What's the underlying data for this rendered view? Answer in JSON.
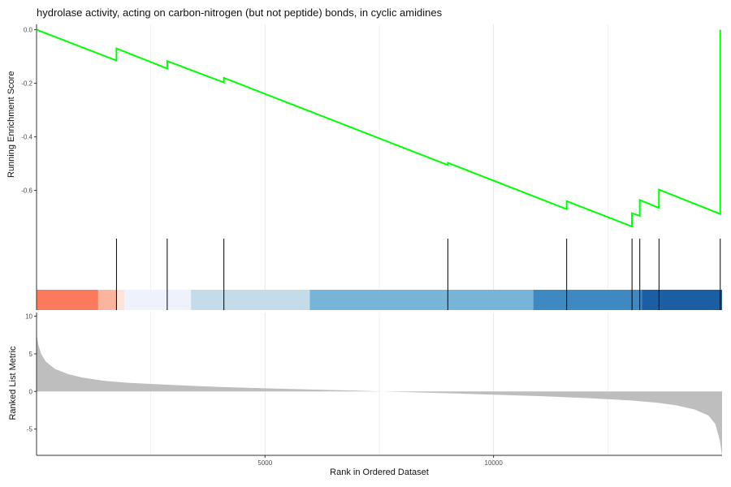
{
  "chart_data": {
    "type": "line",
    "title": "hydrolase activity, acting on carbon-nitrogen (but not peptide) bonds, in cyclic amidines",
    "xlabel": "Rank in Ordered Dataset",
    "xlim": [
      1,
      15000
    ],
    "x_ticks": [
      5000,
      10000
    ],
    "grid": true,
    "panels": {
      "enrichment": {
        "ylabel": "Running Enrichment Score",
        "ylim": [
          -0.78,
          0.02
        ],
        "y_ticks": [
          0.0,
          -0.2,
          -0.4,
          -0.6
        ],
        "line_color": "#00ff00",
        "series": [
          {
            "x": 1,
            "y": 0.0
          },
          {
            "x": 1750,
            "y": -0.115
          },
          {
            "x": 1750,
            "y": -0.07
          },
          {
            "x": 2860,
            "y": -0.145
          },
          {
            "x": 2860,
            "y": -0.117
          },
          {
            "x": 4100,
            "y": -0.197
          },
          {
            "x": 4100,
            "y": -0.18
          },
          {
            "x": 9000,
            "y": -0.505
          },
          {
            "x": 9000,
            "y": -0.497
          },
          {
            "x": 11600,
            "y": -0.67
          },
          {
            "x": 11600,
            "y": -0.64
          },
          {
            "x": 13030,
            "y": -0.735
          },
          {
            "x": 13030,
            "y": -0.685
          },
          {
            "x": 13200,
            "y": -0.695
          },
          {
            "x": 13200,
            "y": -0.636
          },
          {
            "x": 13620,
            "y": -0.665
          },
          {
            "x": 13620,
            "y": -0.597
          },
          {
            "x": 14960,
            "y": -0.688
          },
          {
            "x": 14960,
            "y": 0.0
          }
        ]
      },
      "hits": {
        "positions": [
          1750,
          2860,
          4100,
          9000,
          11600,
          13030,
          13200,
          13620,
          14960
        ],
        "heatmap_bands": [
          {
            "from": 1,
            "to": 1350,
            "color": "#fb7a5e"
          },
          {
            "from": 1350,
            "to": 1760,
            "color": "#fcb49c"
          },
          {
            "from": 1760,
            "to": 1920,
            "color": "#fde4d8"
          },
          {
            "from": 1920,
            "to": 3380,
            "color": "#eef2fb"
          },
          {
            "from": 3380,
            "to": 5980,
            "color": "#c4dbea"
          },
          {
            "from": 5980,
            "to": 10870,
            "color": "#78b4d8"
          },
          {
            "from": 10870,
            "to": 13250,
            "color": "#3f89c3"
          },
          {
            "from": 13250,
            "to": 15000,
            "color": "#1c5ea3"
          }
        ]
      },
      "ranked": {
        "ylabel": "Ranked List Metric",
        "ylim": [
          -8.5,
          10.5
        ],
        "y_ticks": [
          10,
          5,
          0,
          -5
        ],
        "fill_color": "#bebebe",
        "series": [
          {
            "x": 1,
            "y": 7.6
          },
          {
            "x": 40,
            "y": 6.2
          },
          {
            "x": 100,
            "y": 5.0
          },
          {
            "x": 200,
            "y": 4.0
          },
          {
            "x": 400,
            "y": 3.0
          },
          {
            "x": 700,
            "y": 2.3
          },
          {
            "x": 1000,
            "y": 1.85
          },
          {
            "x": 1500,
            "y": 1.4
          },
          {
            "x": 2000,
            "y": 1.15
          },
          {
            "x": 3000,
            "y": 0.85
          },
          {
            "x": 4000,
            "y": 0.6
          },
          {
            "x": 5000,
            "y": 0.42
          },
          {
            "x": 6000,
            "y": 0.26
          },
          {
            "x": 7000,
            "y": 0.12
          },
          {
            "x": 7500,
            "y": 0.02
          },
          {
            "x": 8000,
            "y": -0.07
          },
          {
            "x": 9000,
            "y": -0.24
          },
          {
            "x": 10000,
            "y": -0.42
          },
          {
            "x": 11000,
            "y": -0.62
          },
          {
            "x": 12000,
            "y": -0.88
          },
          {
            "x": 13000,
            "y": -1.2
          },
          {
            "x": 13600,
            "y": -1.5
          },
          {
            "x": 14000,
            "y": -1.85
          },
          {
            "x": 14400,
            "y": -2.4
          },
          {
            "x": 14700,
            "y": -3.2
          },
          {
            "x": 14850,
            "y": -4.3
          },
          {
            "x": 14950,
            "y": -6.5
          },
          {
            "x": 15000,
            "y": -8.5
          }
        ]
      }
    }
  }
}
